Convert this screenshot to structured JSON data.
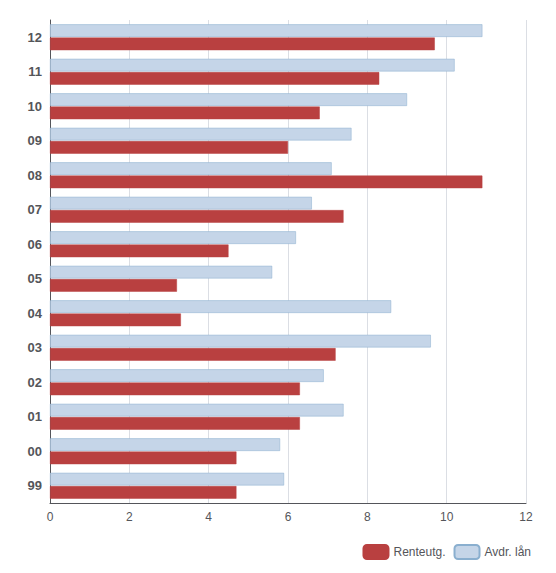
{
  "chart_data": {
    "type": "bar",
    "orientation": "horizontal",
    "categories": [
      "99",
      "00",
      "01",
      "02",
      "03",
      "04",
      "05",
      "06",
      "07",
      "08",
      "09",
      "10",
      "11",
      "12"
    ],
    "series": [
      {
        "name": "Renteutg.",
        "color": "#b94040",
        "values": [
          4.7,
          4.7,
          6.3,
          6.3,
          7.2,
          3.3,
          3.2,
          4.5,
          7.4,
          10.9,
          6.0,
          6.8,
          8.3,
          9.7
        ]
      },
      {
        "name": "Avdr. lån",
        "color": "#c5d5e8",
        "values": [
          5.9,
          5.8,
          7.4,
          6.9,
          9.6,
          8.6,
          5.6,
          6.2,
          6.6,
          7.1,
          7.6,
          9.0,
          10.2,
          10.9
        ]
      }
    ],
    "xlim": [
      0,
      12
    ],
    "xticks": [
      0,
      2,
      4,
      6,
      8,
      10,
      12
    ],
    "grid": true,
    "legend": "lower right"
  }
}
